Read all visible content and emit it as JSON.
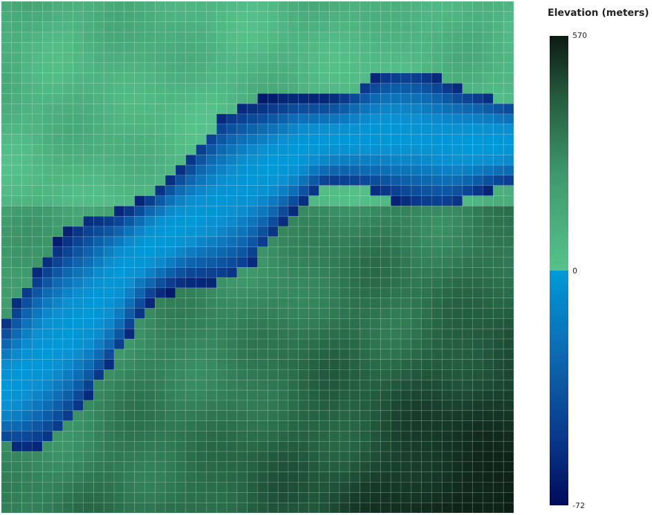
{
  "chart_data": {
    "type": "heatmap",
    "grid": {
      "cols": 50,
      "rows": 50
    },
    "value_range": [
      -72,
      570
    ],
    "legend": {
      "title": "Elevation (meters)",
      "ticks": [
        "570",
        "0",
        "-72"
      ],
      "position": "right"
    },
    "colormap": {
      "water": [
        "#000a5a",
        "#0a3a8c",
        "#0d6ab2",
        "#0b8fcf",
        "#0099d8"
      ],
      "land": [
        "#56c28c",
        "#3f9a6c",
        "#2a6e4b",
        "#173d2a",
        "#0b1a12"
      ]
    },
    "description_note": ""
  }
}
